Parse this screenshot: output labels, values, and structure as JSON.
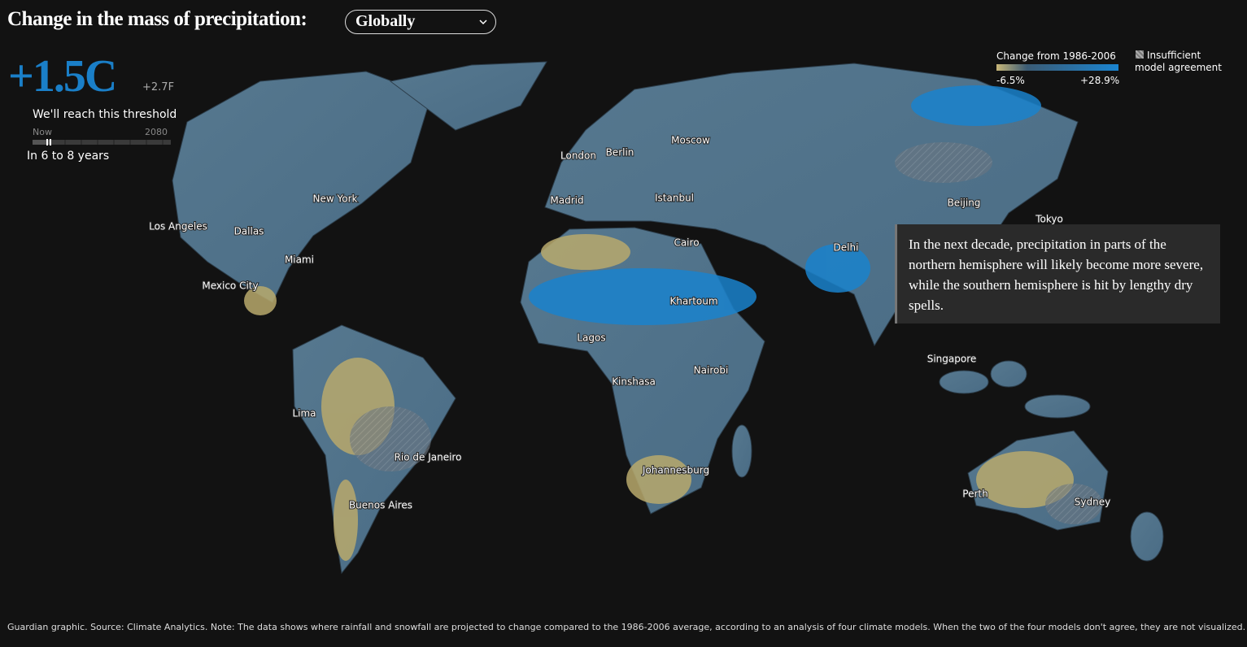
{
  "header": {
    "title": "Change in the mass of precipitation:",
    "dropdown": "Globally"
  },
  "threshold": {
    "celsius": "+1.5C",
    "fahrenheit": "+2.7F",
    "caption": "We'll reach this threshold",
    "scale_start": "Now",
    "scale_end": "2080",
    "timing": "In 6 to 8 years"
  },
  "legend": {
    "title": "Change from 1986-2006",
    "min_label": "-6.5%",
    "max_label": "+28.9%",
    "hatch_label": "Insufficient model agreement"
  },
  "cities": [
    "Moscow",
    "London",
    "Berlin",
    "Madrid",
    "Istanbul",
    "New York",
    "Los Angeles",
    "Dallas",
    "Miami",
    "Mexico City",
    "Cairo",
    "Khartoum",
    "Lagos",
    "Kinshasa",
    "Nairobi",
    "Johannesburg",
    "Lima",
    "Rio de Janeiro",
    "Buenos Aires",
    "Delhi",
    "Beijing",
    "Tokyo",
    "Singapore",
    "Perth",
    "Sydney"
  ],
  "annotation": "In the next decade, precipitation in parts of the northern hemisphere will likely become more severe, while the southern hemisphere is hit by lengthy dry spells.",
  "footer": "Guardian graphic. Source: Climate Analytics. Note: The data shows where rainfall and snowfall are projected to change compared to the 1986-2006 average, according to an analysis of four climate models. When the two of the four models don't agree, they are not visualized."
}
